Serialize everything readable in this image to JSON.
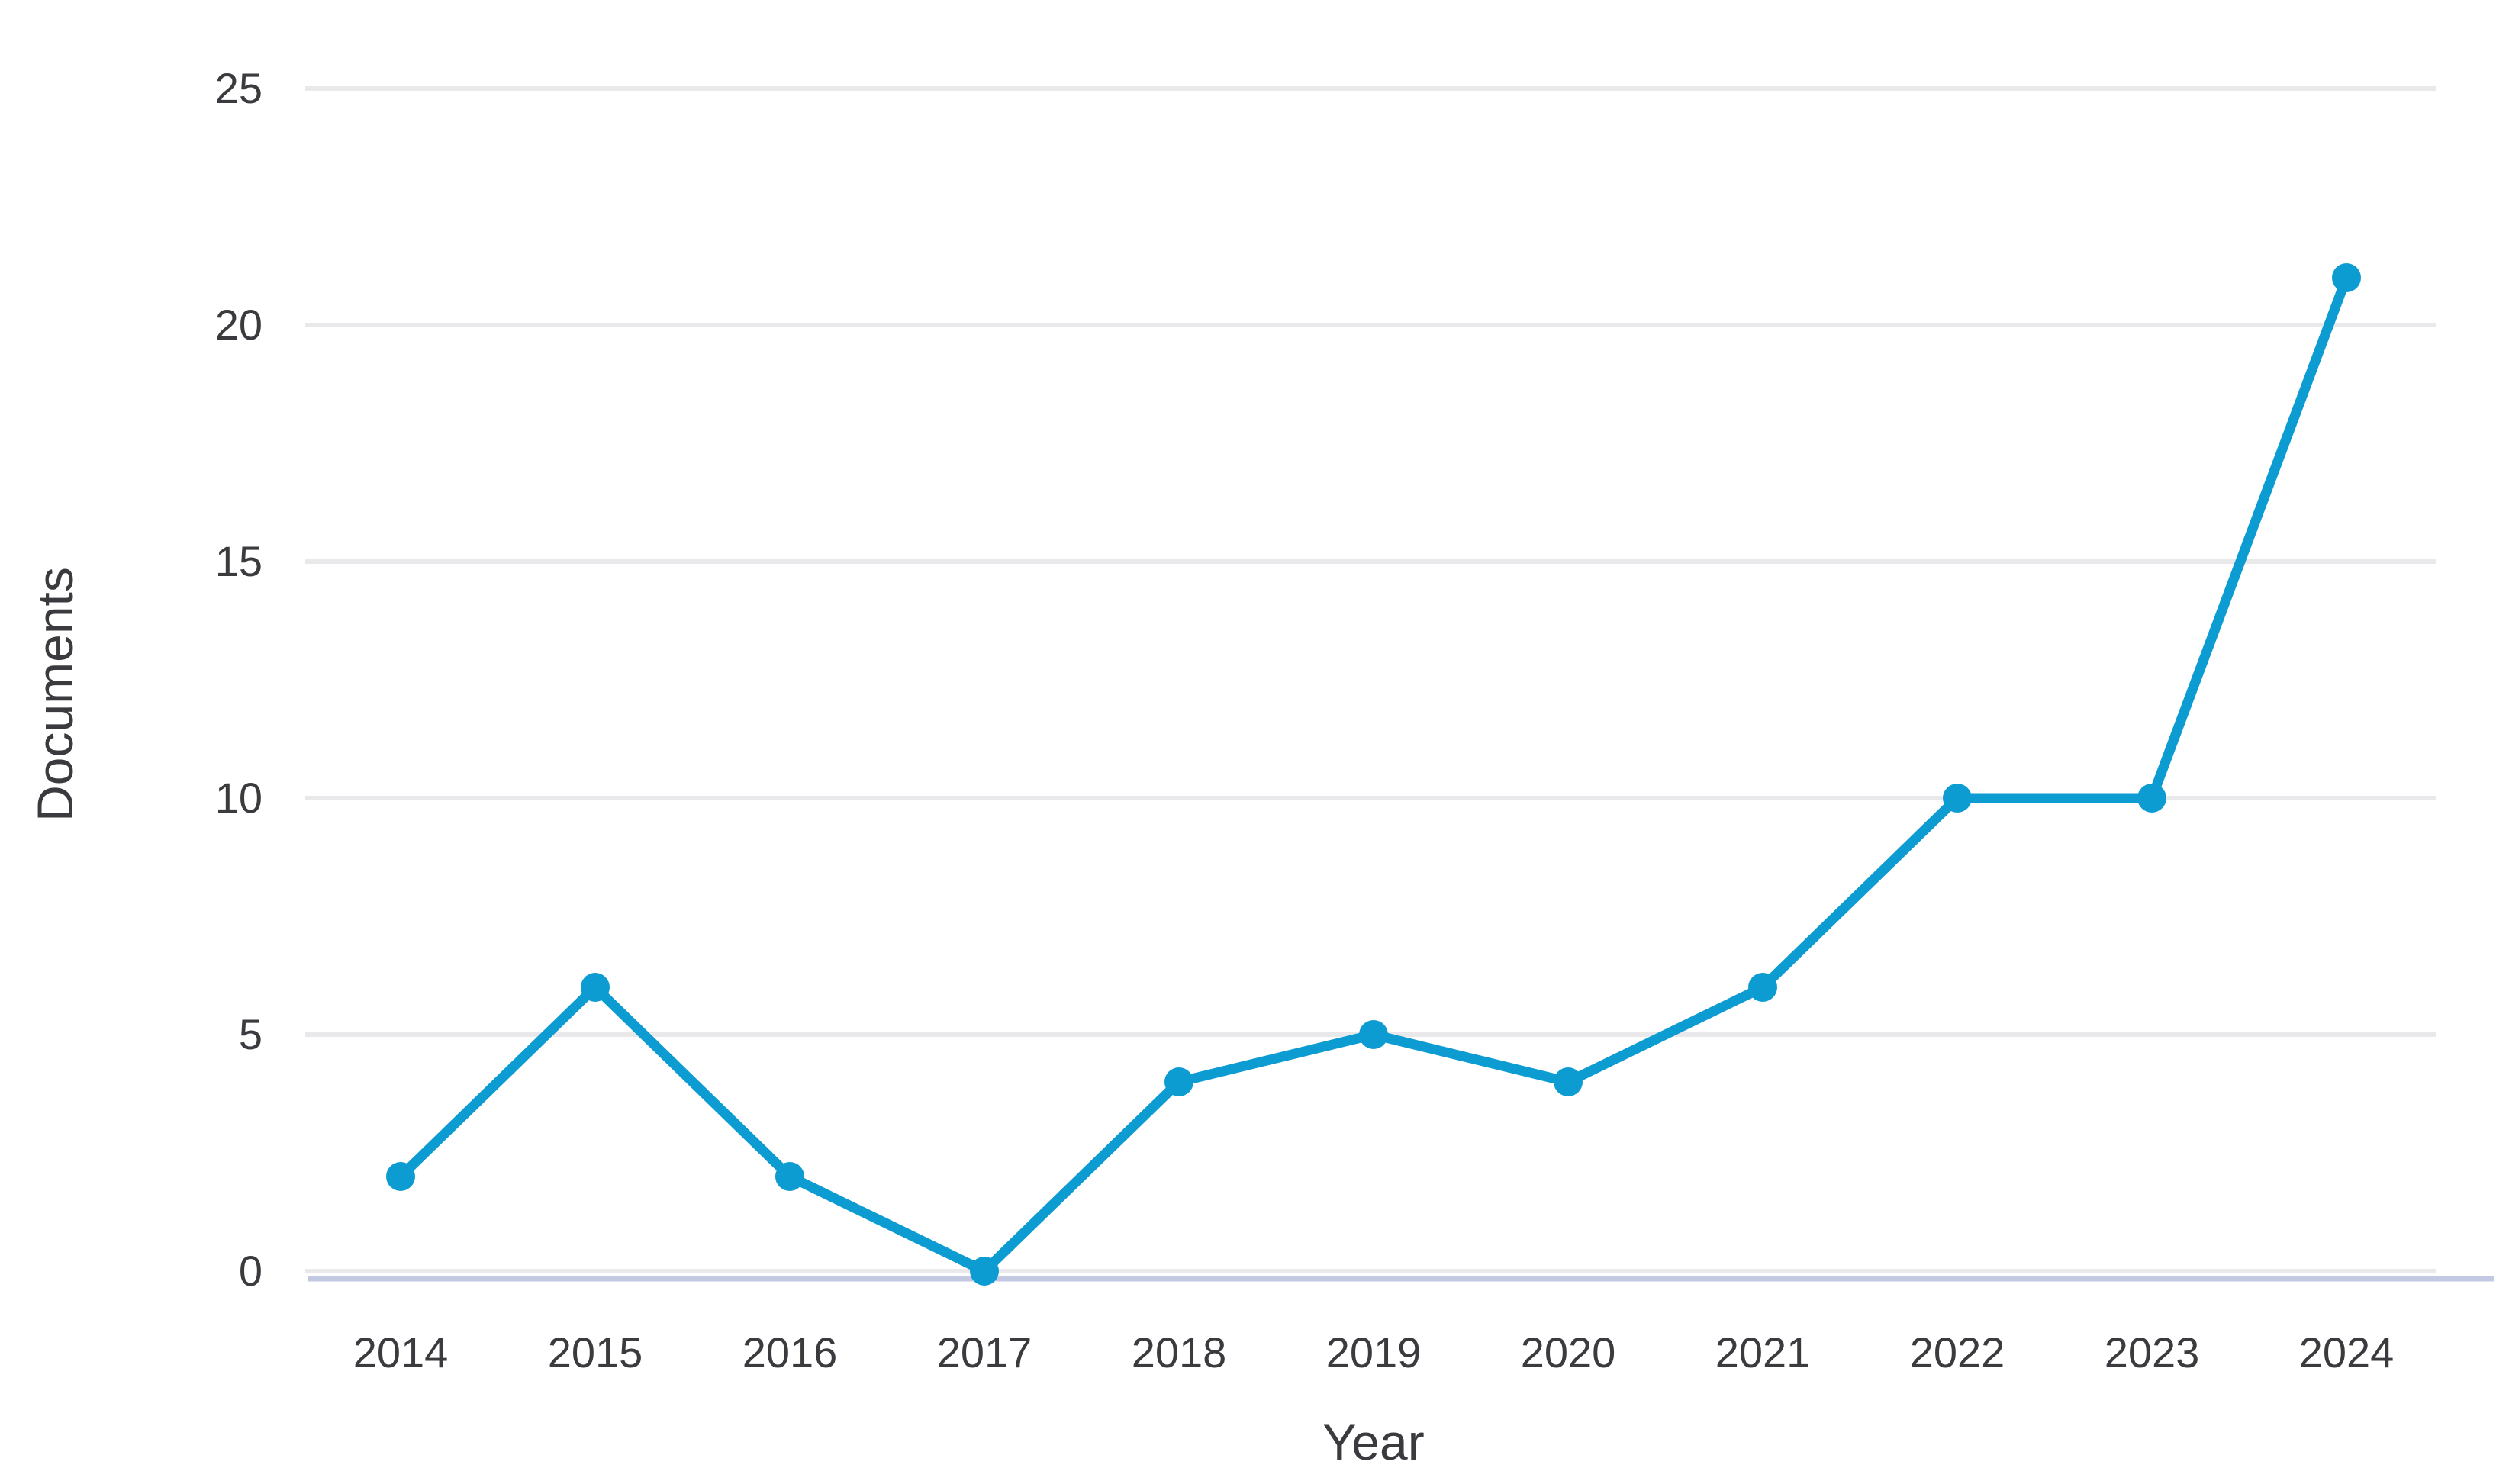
{
  "chart_data": {
    "type": "line",
    "title": "",
    "categories": [
      "2014",
      "2015",
      "2016",
      "2017",
      "2018",
      "2019",
      "2020",
      "2021",
      "2022",
      "2023",
      "2024"
    ],
    "series": [
      {
        "name": "Documents",
        "values": [
          2,
          6,
          2,
          0,
          4,
          5,
          4,
          6,
          10,
          10,
          21
        ]
      }
    ],
    "xlabel": "Year",
    "ylabel": "Documents",
    "ylim": [
      0,
      25
    ],
    "yticks": [
      0,
      5,
      10,
      15,
      20,
      25
    ],
    "grid": true,
    "legend_position": "none",
    "colors": {
      "line": "#0c9cd1",
      "marker": "#0c9cd1",
      "gridline": "#e9e9eb",
      "baseline": "#c3c9e2",
      "text": "#3b3b3f"
    }
  }
}
